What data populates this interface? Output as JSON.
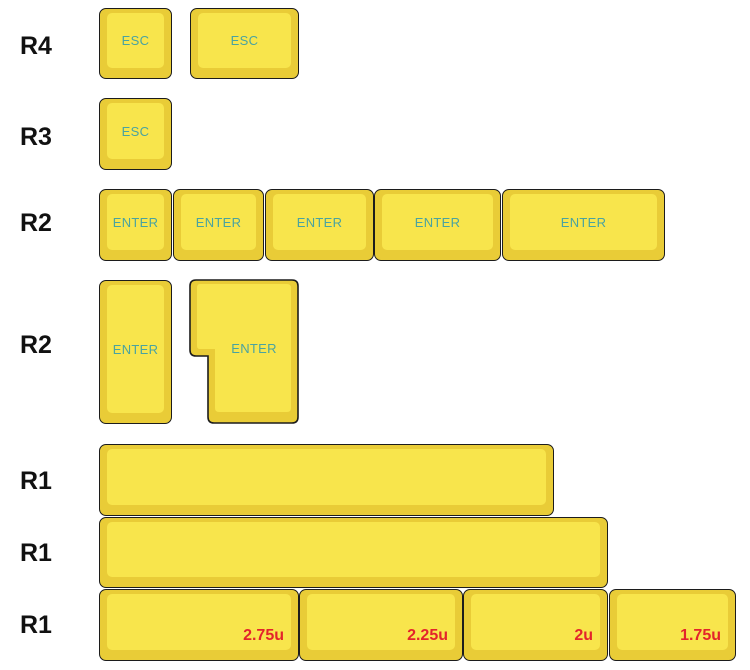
{
  "rows": {
    "r4_label": "R4",
    "r3_label": "R3",
    "r2_label": "R2",
    "r2_tall_label": "R2",
    "r1_a_label": "R1",
    "r1_b_label": "R1",
    "r1_c_label": "R1"
  },
  "keys": {
    "esc_1u": "ESC",
    "esc_1_5u": "ESC",
    "esc_r3": "ESC",
    "enter_1": "ENTER",
    "enter_2": "ENTER",
    "enter_3": "ENTER",
    "enter_4": "ENTER",
    "enter_5": "ENTER",
    "enter_tall": "ENTER",
    "enter_iso": "ENTER"
  },
  "spacebars": {
    "size_1": "2.75u",
    "size_2": "2.25u",
    "size_3": "2u",
    "size_4": "1.75u"
  },
  "colors": {
    "keycap_side": "#e9cc37",
    "keycap_top": "#f8e54c",
    "legend": "#4aa3a0",
    "size_label": "#e3242b",
    "outline": "#1c1c1c"
  }
}
